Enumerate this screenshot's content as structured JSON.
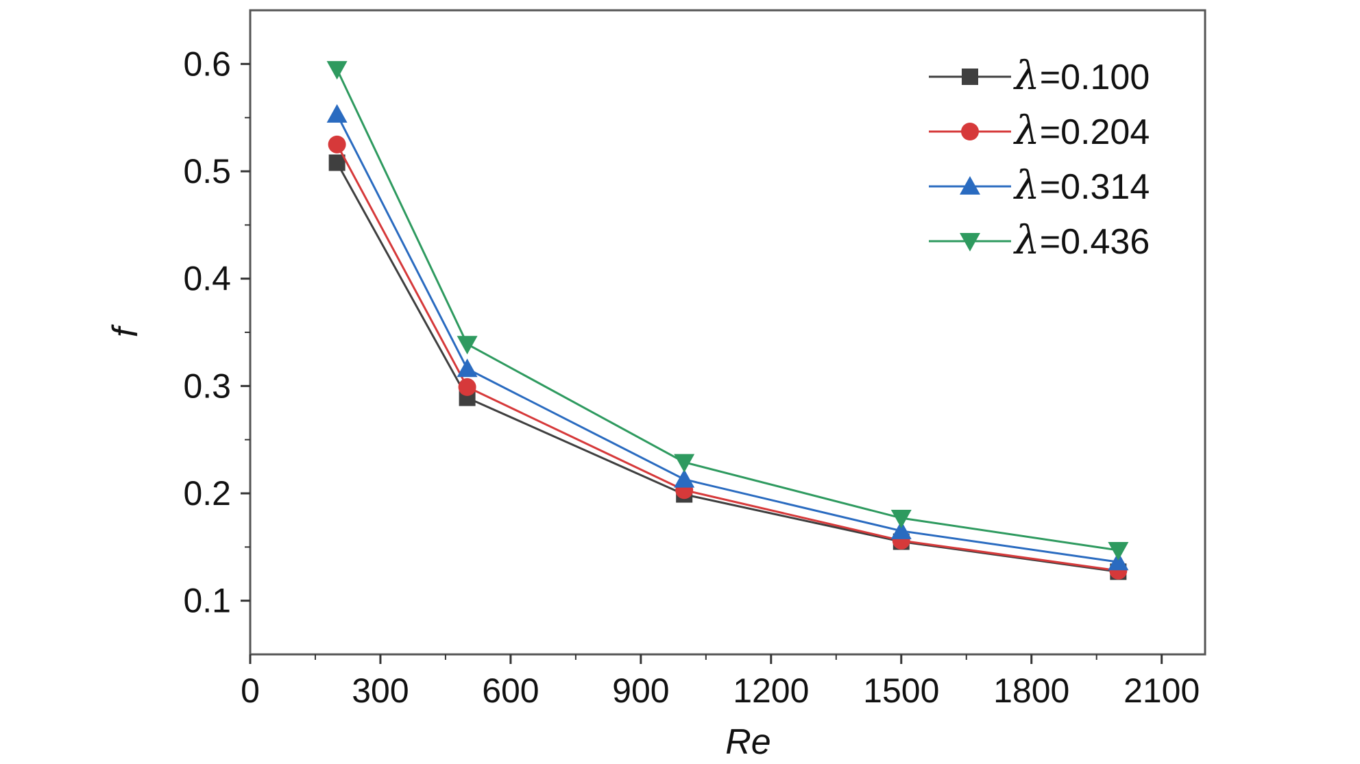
{
  "chart_data": {
    "type": "line",
    "title": "",
    "xlabel": "Re",
    "ylabel": "f",
    "xlim": [
      0,
      2200
    ],
    "ylim": [
      0.05,
      0.65
    ],
    "x_ticks": [
      0,
      300,
      600,
      900,
      1200,
      1500,
      1800,
      2100
    ],
    "x_tick_labels": [
      "0",
      "300",
      "600",
      "900",
      "1200",
      "1500",
      "1800",
      "2100"
    ],
    "y_ticks": [
      0.1,
      0.2,
      0.3,
      0.4,
      0.5,
      0.6
    ],
    "y_tick_labels": [
      "0.1",
      "0.2",
      "0.3",
      "0.4",
      "0.5",
      "0.6"
    ],
    "grid": false,
    "legend_position": "top-right",
    "x": [
      200,
      500,
      1000,
      1500,
      2000
    ],
    "series": [
      {
        "name": "λ=0.100",
        "symbol": "λ",
        "value_text": "=0.100",
        "color": "#3f3f3f",
        "marker": "square",
        "values": [
          0.508,
          0.289,
          0.199,
          0.155,
          0.127
        ]
      },
      {
        "name": "λ=0.204",
        "symbol": "λ",
        "value_text": "=0.204",
        "color": "#d6393a",
        "marker": "circle",
        "values": [
          0.525,
          0.299,
          0.203,
          0.156,
          0.128
        ]
      },
      {
        "name": "λ=0.314",
        "symbol": "λ",
        "value_text": "=0.314",
        "color": "#2a6bc0",
        "marker": "triangle-up",
        "values": [
          0.553,
          0.316,
          0.213,
          0.165,
          0.136
        ]
      },
      {
        "name": "λ=0.436",
        "symbol": "λ",
        "value_text": "=0.436",
        "color": "#2e9a5f",
        "marker": "triangle-down",
        "values": [
          0.595,
          0.339,
          0.229,
          0.177,
          0.147
        ]
      }
    ]
  }
}
